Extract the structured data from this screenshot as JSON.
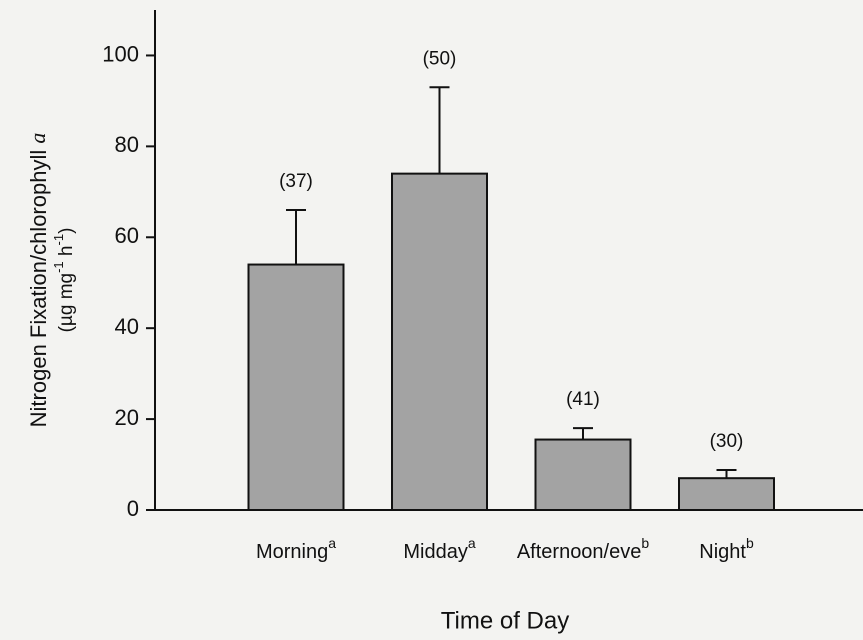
{
  "chart_data": {
    "type": "bar",
    "categories": [
      "Morning",
      "Midday",
      "Afternoon/eve",
      "Night"
    ],
    "category_superscripts": [
      "a",
      "a",
      "b",
      "b"
    ],
    "values": [
      54,
      74,
      15.5,
      7
    ],
    "errors": [
      12,
      19,
      2.5,
      1.8
    ],
    "n_labels": [
      "(37)",
      "(50)",
      "(41)",
      "(30)"
    ],
    "color": "#a3a3a3",
    "ylim": [
      0,
      110
    ],
    "yticks": [
      0,
      20,
      40,
      60,
      80,
      100
    ],
    "xlabel": "Time of Day",
    "ylabel": "Nitrogen Fixation/chlorophyll",
    "ylabel_italic": "a",
    "ylabel_units": [
      "(µg mg",
      "-1",
      " h",
      "-1",
      ")"
    ],
    "grid": false
  }
}
